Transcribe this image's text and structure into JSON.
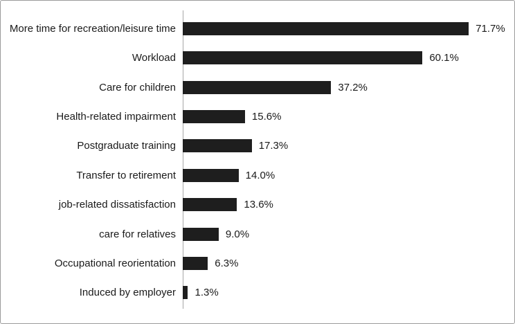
{
  "chart_data": {
    "type": "bar",
    "orientation": "horizontal",
    "title": "",
    "xlabel": "",
    "ylabel": "",
    "xlim": [
      0,
      80
    ],
    "grid": false,
    "legend": false,
    "bar_color": "#1e1e1e",
    "axis_color": "#a6a6a6",
    "frame_color": "#9a9a9a",
    "categories": [
      "More time for recreation/leisure time",
      "Workload",
      "Care for children",
      "Health-related impairment",
      "Postgraduate training",
      "Transfer to retirement",
      "job-related dissatisfaction",
      "care for relatives",
      "Occupational reorientation",
      "Induced by employer"
    ],
    "values": [
      71.7,
      60.1,
      37.2,
      15.6,
      17.3,
      14.0,
      13.6,
      9.0,
      6.3,
      1.3
    ],
    "value_labels": [
      "71.7%",
      "60.1%",
      "37.2%",
      "15.6%",
      "17.3%",
      "14.0%",
      "13.6%",
      "9.0%",
      "6.3%",
      "1.3%"
    ]
  }
}
